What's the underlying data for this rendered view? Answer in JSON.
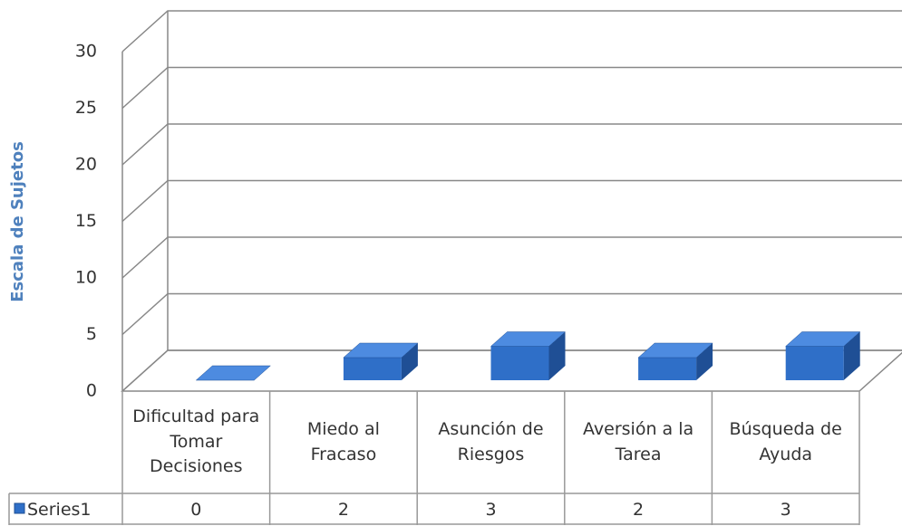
{
  "chart_data": {
    "type": "bar3d",
    "y_label": "Escala de Sujetos",
    "categories": [
      "Dificultad para Tomar Decisiones",
      "Miedo al Fracaso",
      "Asunción de Riesgos",
      "Aversión a la Tarea",
      "Búsqueda de Ayuda"
    ],
    "series": [
      {
        "name": "Series1",
        "color": "#2f6fc8",
        "values": [
          0,
          2,
          3,
          2,
          3
        ]
      }
    ],
    "ylim": [
      0,
      30
    ],
    "yticks": [
      0,
      5,
      10,
      15,
      20,
      25,
      30
    ],
    "grid": true,
    "data_table": true
  }
}
